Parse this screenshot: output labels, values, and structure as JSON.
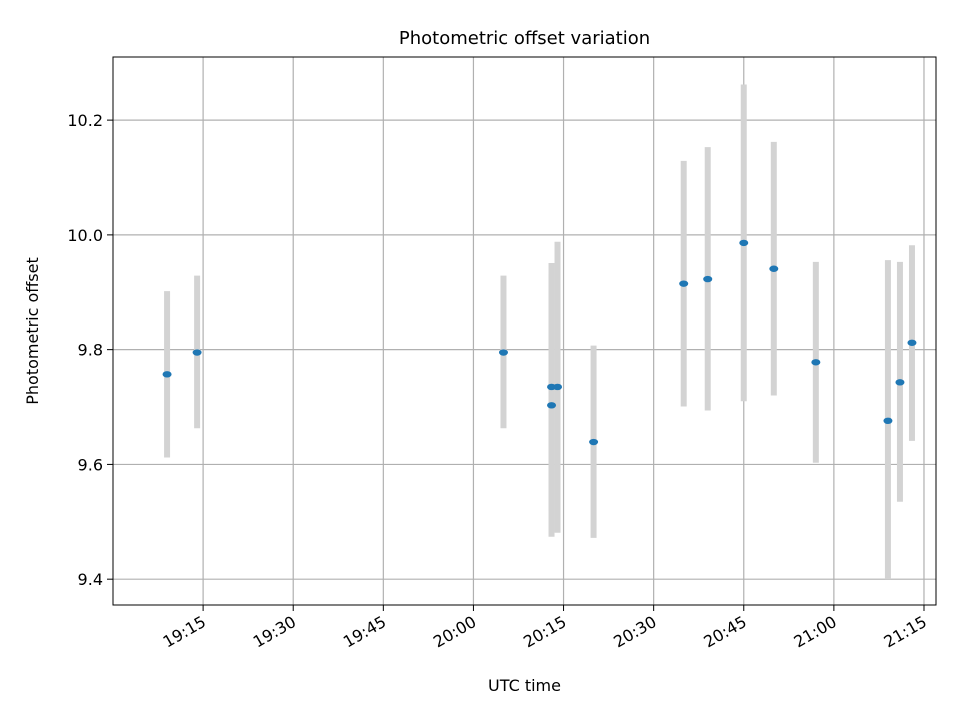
{
  "chart_data": {
    "type": "scatter",
    "title": "Photometric offset variation",
    "xlabel": "UTC time",
    "ylabel": "Photometric offset",
    "grid": true,
    "xlim": [
      "19:00",
      "21:17"
    ],
    "ylim": [
      9.355,
      10.31
    ],
    "x_ticks": [
      "19:15",
      "19:30",
      "19:45",
      "20:00",
      "20:15",
      "20:30",
      "20:45",
      "21:00",
      "21:15"
    ],
    "y_ticks": [
      9.4,
      9.6,
      9.8,
      10.0,
      10.2
    ],
    "y_tick_labels": [
      "9.4",
      "9.6",
      "9.8",
      "10.0",
      "10.2"
    ],
    "series": [
      {
        "points": [
          {
            "x": "19:09",
            "y": 9.757,
            "err_low": 9.612,
            "err_high": 9.902
          },
          {
            "x": "19:14",
            "y": 9.795,
            "err_low": 9.663,
            "err_high": 9.929
          },
          {
            "x": "20:05",
            "y": 9.795,
            "err_low": 9.663,
            "err_high": 9.929
          },
          {
            "x": "20:13",
            "y": 9.735,
            "err_low": 9.519,
            "err_high": 9.951
          },
          {
            "x": "20:13",
            "y": 9.703,
            "err_low": 9.474,
            "err_high": 9.932
          },
          {
            "x": "20:14",
            "y": 9.735,
            "err_low": 9.481,
            "err_high": 9.988
          },
          {
            "x": "20:20",
            "y": 9.639,
            "err_low": 9.472,
            "err_high": 9.807
          },
          {
            "x": "20:35",
            "y": 9.915,
            "err_low": 9.701,
            "err_high": 10.129
          },
          {
            "x": "20:39",
            "y": 9.923,
            "err_low": 9.694,
            "err_high": 10.153
          },
          {
            "x": "20:45",
            "y": 9.986,
            "err_low": 9.71,
            "err_high": 10.262
          },
          {
            "x": "20:50",
            "y": 9.941,
            "err_low": 9.72,
            "err_high": 10.162
          },
          {
            "x": "20:57",
            "y": 9.778,
            "err_low": 9.603,
            "err_high": 9.953
          },
          {
            "x": "21:09",
            "y": 9.676,
            "err_low": 9.4,
            "err_high": 9.956
          },
          {
            "x": "21:11",
            "y": 9.743,
            "err_low": 9.535,
            "err_high": 9.953
          },
          {
            "x": "21:13",
            "y": 9.812,
            "err_low": 9.641,
            "err_high": 9.982
          }
        ]
      }
    ],
    "colors": {
      "marker": "#1f77b4",
      "errorbar": "#d3d3d3",
      "grid": "#b0b0b0",
      "axes": "#000000"
    }
  }
}
